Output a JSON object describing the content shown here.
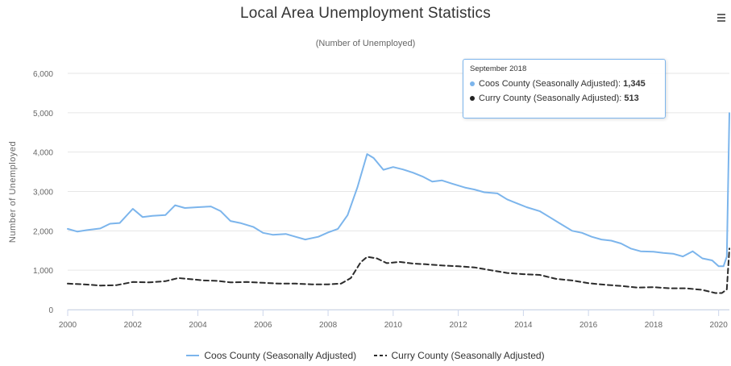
{
  "chart_data": {
    "type": "line",
    "title": "Local Area Unemployment Statistics",
    "subtitle": "(Number of Unemployed)",
    "ylabel": "Number of Unemployed",
    "xlabel": "",
    "xlim": [
      2000,
      2020.33
    ],
    "ylim": [
      0,
      6000
    ],
    "yticks": [
      "0",
      "1,000",
      "2,000",
      "3,000",
      "4,000",
      "5,000",
      "6,000"
    ],
    "xticks": [
      "2000",
      "2002",
      "2004",
      "2006",
      "2008",
      "2010",
      "2012",
      "2014",
      "2016",
      "2018",
      "2020"
    ],
    "grid": true,
    "legend_position": "bottom",
    "series": [
      {
        "name": "Coos County (Seasonally Adjusted)",
        "color": "#7cb5ec",
        "dash": "solid",
        "x": [
          2000.0,
          2000.3,
          2000.6,
          2001.0,
          2001.3,
          2001.6,
          2002.0,
          2002.3,
          2002.6,
          2003.0,
          2003.3,
          2003.6,
          2004.0,
          2004.4,
          2004.7,
          2005.0,
          2005.3,
          2005.7,
          2006.0,
          2006.3,
          2006.7,
          2007.0,
          2007.3,
          2007.7,
          2008.0,
          2008.3,
          2008.6,
          2008.9,
          2009.2,
          2009.4,
          2009.7,
          2010.0,
          2010.3,
          2010.6,
          2010.9,
          2011.2,
          2011.5,
          2011.8,
          2012.2,
          2012.5,
          2012.8,
          2013.2,
          2013.5,
          2013.8,
          2014.1,
          2014.5,
          2014.8,
          2015.1,
          2015.5,
          2015.8,
          2016.1,
          2016.4,
          2016.7,
          2017.0,
          2017.3,
          2017.6,
          2018.0,
          2018.3,
          2018.6,
          2018.9,
          2019.2,
          2019.5,
          2019.8,
          2020.0,
          2020.15,
          2020.25,
          2020.33
        ],
        "values": [
          2050,
          1980,
          2020,
          2060,
          2180,
          2200,
          2560,
          2350,
          2380,
          2400,
          2650,
          2580,
          2600,
          2620,
          2500,
          2250,
          2200,
          2100,
          1950,
          1900,
          1920,
          1850,
          1780,
          1850,
          1960,
          2050,
          2400,
          3100,
          3950,
          3850,
          3550,
          3620,
          3560,
          3480,
          3380,
          3250,
          3280,
          3200,
          3100,
          3050,
          2980,
          2950,
          2800,
          2700,
          2600,
          2500,
          2350,
          2200,
          2000,
          1950,
          1850,
          1780,
          1750,
          1680,
          1550,
          1480,
          1470,
          1440,
          1420,
          1350,
          1480,
          1300,
          1250,
          1100,
          1100,
          1345,
          4990
        ]
      },
      {
        "name": "Curry County (Seasonally Adjusted)",
        "color": "#2b2b2b",
        "dash": "dashed",
        "x": [
          2000.0,
          2000.5,
          2001.0,
          2001.5,
          2002.0,
          2002.5,
          2003.0,
          2003.4,
          2003.8,
          2004.2,
          2004.6,
          2005.0,
          2005.5,
          2006.0,
          2006.5,
          2007.0,
          2007.5,
          2008.0,
          2008.4,
          2008.7,
          2009.0,
          2009.2,
          2009.5,
          2009.8,
          2010.2,
          2010.6,
          2011.0,
          2011.5,
          2012.0,
          2012.5,
          2013.0,
          2013.5,
          2014.0,
          2014.5,
          2015.0,
          2015.5,
          2016.0,
          2016.5,
          2017.0,
          2017.5,
          2018.0,
          2018.5,
          2019.0,
          2019.5,
          2019.9,
          2020.1,
          2020.25,
          2020.33
        ],
        "values": [
          660,
          640,
          610,
          620,
          700,
          690,
          720,
          800,
          770,
          740,
          730,
          690,
          700,
          680,
          660,
          660,
          640,
          640,
          660,
          800,
          1200,
          1340,
          1300,
          1180,
          1210,
          1170,
          1150,
          1120,
          1100,
          1070,
          1000,
          930,
          900,
          880,
          780,
          740,
          670,
          630,
          600,
          560,
          570,
          540,
          540,
          500,
          420,
          420,
          513,
          1550
        ]
      }
    ]
  },
  "tooltip": {
    "date": "September 2018",
    "rows": [
      {
        "label": "Coos County (Seasonally Adjusted):",
        "value": "1,345",
        "color": "#7cb5ec"
      },
      {
        "label": "Curry County (Seasonally Adjusted):",
        "value": "513",
        "color": "#222222"
      }
    ]
  },
  "menu_icon": "hamburger-menu-icon"
}
